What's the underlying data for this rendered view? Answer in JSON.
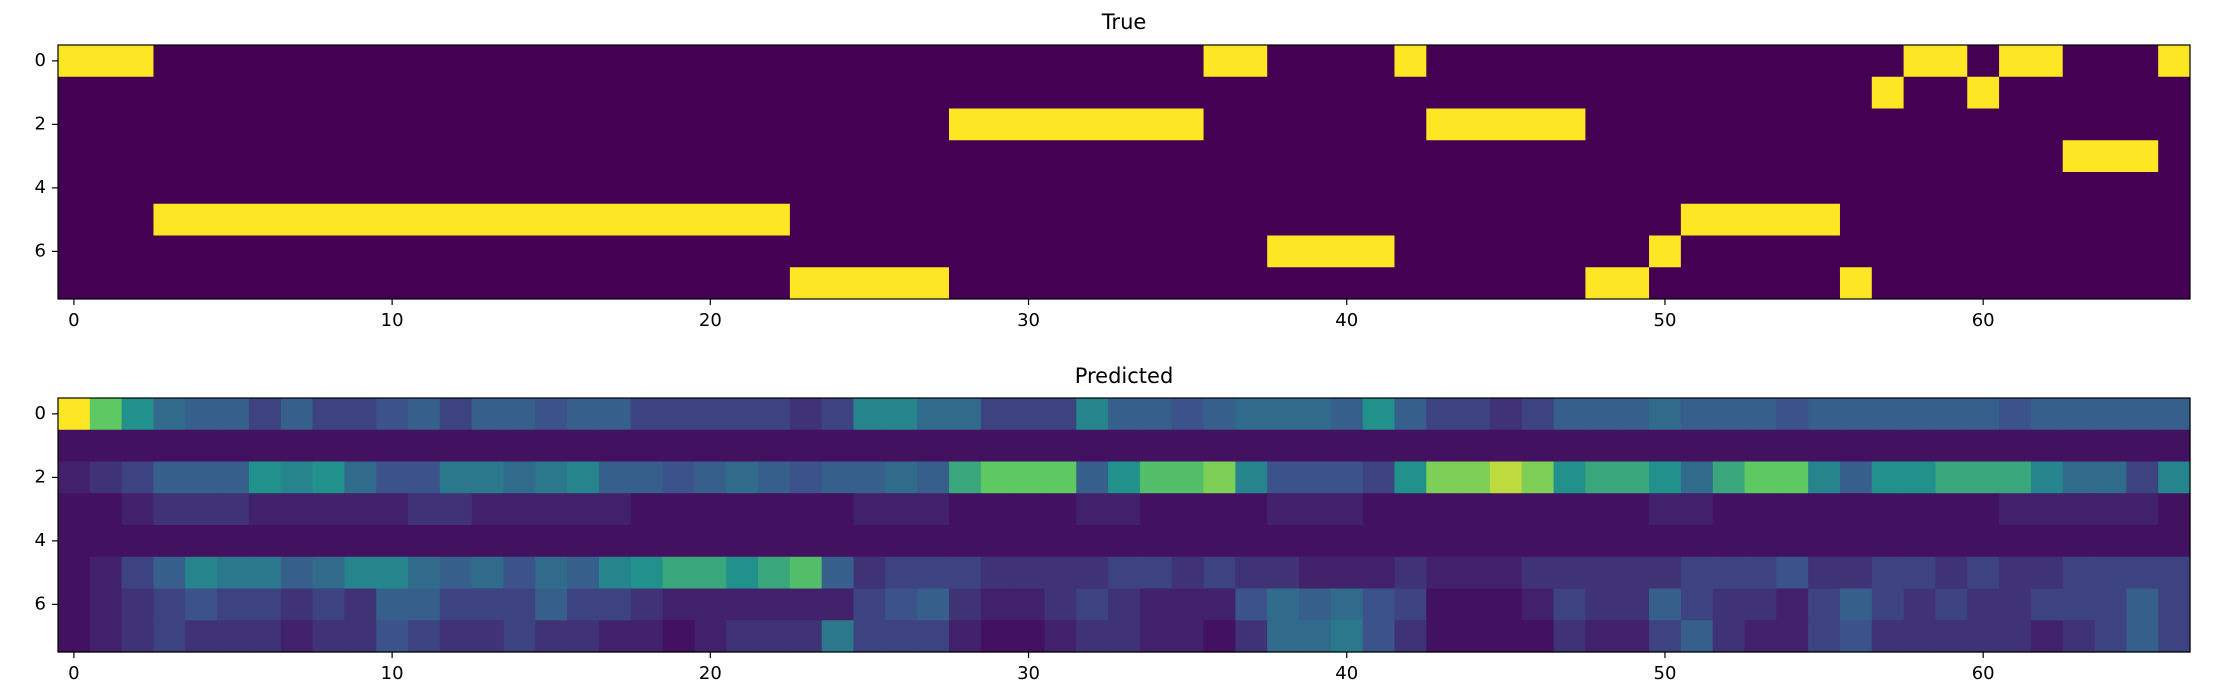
{
  "chart_data": [
    {
      "type": "heatmap",
      "title": "True",
      "xlabel": "",
      "ylabel": "",
      "x_ticks": [
        0,
        10,
        20,
        30,
        40,
        50,
        60
      ],
      "y_ticks": [
        0,
        2,
        4,
        6
      ],
      "n_rows": 8,
      "n_cols": 67,
      "colormap": "viridis",
      "value_range": [
        0,
        1
      ],
      "segments": [
        {
          "row": 0,
          "start": 0,
          "end": 2
        },
        {
          "row": 5,
          "start": 3,
          "end": 22
        },
        {
          "row": 7,
          "start": 23,
          "end": 27
        },
        {
          "row": 2,
          "start": 28,
          "end": 35
        },
        {
          "row": 0,
          "start": 36,
          "end": 37
        },
        {
          "row": 6,
          "start": 38,
          "end": 41
        },
        {
          "row": 0,
          "start": 42,
          "end": 42
        },
        {
          "row": 2,
          "start": 43,
          "end": 47
        },
        {
          "row": 7,
          "start": 48,
          "end": 49
        },
        {
          "row": 6,
          "start": 50,
          "end": 50
        },
        {
          "row": 5,
          "start": 51,
          "end": 55
        },
        {
          "row": 7,
          "start": 56,
          "end": 56
        },
        {
          "row": 1,
          "start": 57,
          "end": 57
        },
        {
          "row": 0,
          "start": 58,
          "end": 59
        },
        {
          "row": 1,
          "start": 60,
          "end": 60
        },
        {
          "row": 0,
          "start": 61,
          "end": 62
        },
        {
          "row": 3,
          "start": 63,
          "end": 65
        },
        {
          "row": 0,
          "start": 66,
          "end": 66
        }
      ]
    },
    {
      "type": "heatmap",
      "title": "Predicted",
      "xlabel": "",
      "ylabel": "",
      "x_ticks": [
        0,
        10,
        20,
        30,
        40,
        50,
        60
      ],
      "y_ticks": [
        0,
        2,
        4,
        6
      ],
      "n_rows": 8,
      "n_cols": 67,
      "colormap": "viridis",
      "value_range": [
        0,
        1
      ],
      "values": [
        [
          1.0,
          0.75,
          0.5,
          0.35,
          0.3,
          0.3,
          0.2,
          0.3,
          0.2,
          0.2,
          0.25,
          0.3,
          0.2,
          0.3,
          0.3,
          0.25,
          0.3,
          0.3,
          0.2,
          0.2,
          0.2,
          0.2,
          0.2,
          0.15,
          0.2,
          0.45,
          0.45,
          0.35,
          0.35,
          0.2,
          0.2,
          0.2,
          0.45,
          0.3,
          0.3,
          0.25,
          0.3,
          0.35,
          0.35,
          0.35,
          0.3,
          0.5,
          0.3,
          0.2,
          0.2,
          0.15,
          0.2,
          0.3,
          0.3,
          0.3,
          0.35,
          0.3,
          0.3,
          0.3,
          0.25,
          0.3,
          0.3,
          0.3,
          0.3,
          0.3,
          0.3,
          0.25,
          0.3,
          0.3,
          0.3,
          0.3,
          0.3
        ],
        [
          0.05,
          0.05,
          0.05,
          0.05,
          0.05,
          0.05,
          0.05,
          0.05,
          0.05,
          0.05,
          0.05,
          0.05,
          0.05,
          0.05,
          0.05,
          0.05,
          0.05,
          0.05,
          0.05,
          0.05,
          0.05,
          0.05,
          0.05,
          0.05,
          0.05,
          0.05,
          0.05,
          0.05,
          0.05,
          0.05,
          0.05,
          0.05,
          0.05,
          0.05,
          0.05,
          0.05,
          0.05,
          0.05,
          0.05,
          0.05,
          0.05,
          0.05,
          0.05,
          0.05,
          0.05,
          0.05,
          0.05,
          0.05,
          0.05,
          0.05,
          0.05,
          0.05,
          0.05,
          0.05,
          0.05,
          0.05,
          0.05,
          0.05,
          0.05,
          0.05,
          0.05,
          0.05,
          0.05,
          0.05,
          0.05,
          0.05,
          0.05
        ],
        [
          0.1,
          0.15,
          0.2,
          0.3,
          0.3,
          0.3,
          0.5,
          0.45,
          0.5,
          0.35,
          0.25,
          0.25,
          0.4,
          0.4,
          0.35,
          0.4,
          0.45,
          0.3,
          0.3,
          0.25,
          0.3,
          0.35,
          0.3,
          0.25,
          0.3,
          0.3,
          0.35,
          0.3,
          0.6,
          0.75,
          0.75,
          0.75,
          0.3,
          0.5,
          0.7,
          0.7,
          0.8,
          0.45,
          0.25,
          0.25,
          0.25,
          0.2,
          0.5,
          0.8,
          0.8,
          0.9,
          0.8,
          0.5,
          0.6,
          0.6,
          0.5,
          0.35,
          0.6,
          0.75,
          0.75,
          0.45,
          0.3,
          0.5,
          0.5,
          0.6,
          0.6,
          0.6,
          0.45,
          0.35,
          0.35,
          0.2,
          0.45
        ],
        [
          0.05,
          0.05,
          0.1,
          0.15,
          0.15,
          0.15,
          0.1,
          0.1,
          0.1,
          0.1,
          0.1,
          0.15,
          0.15,
          0.1,
          0.1,
          0.1,
          0.1,
          0.1,
          0.05,
          0.05,
          0.05,
          0.05,
          0.05,
          0.05,
          0.05,
          0.1,
          0.1,
          0.1,
          0.05,
          0.05,
          0.05,
          0.05,
          0.1,
          0.1,
          0.05,
          0.05,
          0.05,
          0.05,
          0.1,
          0.1,
          0.1,
          0.05,
          0.05,
          0.05,
          0.05,
          0.05,
          0.05,
          0.05,
          0.05,
          0.05,
          0.1,
          0.1,
          0.05,
          0.05,
          0.05,
          0.05,
          0.05,
          0.05,
          0.05,
          0.05,
          0.05,
          0.1,
          0.1,
          0.1,
          0.1,
          0.1,
          0.05
        ],
        [
          0.05,
          0.05,
          0.05,
          0.05,
          0.05,
          0.05,
          0.05,
          0.05,
          0.05,
          0.05,
          0.05,
          0.05,
          0.05,
          0.05,
          0.05,
          0.05,
          0.05,
          0.05,
          0.05,
          0.05,
          0.05,
          0.05,
          0.05,
          0.05,
          0.05,
          0.05,
          0.05,
          0.05,
          0.05,
          0.05,
          0.05,
          0.05,
          0.05,
          0.05,
          0.05,
          0.05,
          0.05,
          0.05,
          0.05,
          0.05,
          0.05,
          0.05,
          0.05,
          0.05,
          0.05,
          0.05,
          0.05,
          0.05,
          0.05,
          0.05,
          0.05,
          0.05,
          0.05,
          0.05,
          0.05,
          0.05,
          0.05,
          0.05,
          0.05,
          0.05,
          0.05,
          0.05,
          0.05,
          0.05,
          0.05,
          0.05,
          0.05
        ],
        [
          0.05,
          0.1,
          0.2,
          0.3,
          0.45,
          0.4,
          0.4,
          0.3,
          0.35,
          0.45,
          0.45,
          0.35,
          0.3,
          0.35,
          0.25,
          0.35,
          0.3,
          0.45,
          0.5,
          0.6,
          0.6,
          0.5,
          0.6,
          0.7,
          0.3,
          0.15,
          0.2,
          0.2,
          0.2,
          0.15,
          0.15,
          0.15,
          0.15,
          0.2,
          0.2,
          0.15,
          0.2,
          0.15,
          0.15,
          0.1,
          0.1,
          0.1,
          0.15,
          0.1,
          0.1,
          0.1,
          0.15,
          0.15,
          0.15,
          0.15,
          0.15,
          0.2,
          0.2,
          0.2,
          0.25,
          0.15,
          0.15,
          0.2,
          0.2,
          0.15,
          0.2,
          0.15,
          0.15,
          0.2,
          0.2,
          0.2,
          0.2
        ],
        [
          0.05,
          0.1,
          0.15,
          0.2,
          0.25,
          0.2,
          0.2,
          0.15,
          0.2,
          0.15,
          0.3,
          0.3,
          0.2,
          0.2,
          0.2,
          0.3,
          0.2,
          0.2,
          0.15,
          0.1,
          0.1,
          0.1,
          0.1,
          0.1,
          0.1,
          0.2,
          0.25,
          0.3,
          0.15,
          0.1,
          0.1,
          0.15,
          0.2,
          0.15,
          0.1,
          0.1,
          0.1,
          0.25,
          0.35,
          0.3,
          0.35,
          0.25,
          0.2,
          0.05,
          0.05,
          0.05,
          0.1,
          0.2,
          0.15,
          0.15,
          0.3,
          0.2,
          0.15,
          0.15,
          0.1,
          0.2,
          0.3,
          0.2,
          0.15,
          0.2,
          0.15,
          0.15,
          0.2,
          0.2,
          0.2,
          0.3,
          0.2
        ],
        [
          0.05,
          0.1,
          0.15,
          0.2,
          0.15,
          0.15,
          0.15,
          0.1,
          0.15,
          0.15,
          0.25,
          0.2,
          0.15,
          0.15,
          0.2,
          0.15,
          0.15,
          0.1,
          0.1,
          0.05,
          0.1,
          0.15,
          0.15,
          0.15,
          0.4,
          0.2,
          0.2,
          0.2,
          0.1,
          0.05,
          0.05,
          0.1,
          0.15,
          0.15,
          0.1,
          0.1,
          0.05,
          0.15,
          0.35,
          0.35,
          0.4,
          0.25,
          0.15,
          0.05,
          0.05,
          0.05,
          0.05,
          0.15,
          0.1,
          0.1,
          0.2,
          0.3,
          0.15,
          0.1,
          0.1,
          0.2,
          0.25,
          0.15,
          0.15,
          0.15,
          0.15,
          0.15,
          0.1,
          0.15,
          0.2,
          0.3,
          0.2
        ]
      ]
    }
  ]
}
